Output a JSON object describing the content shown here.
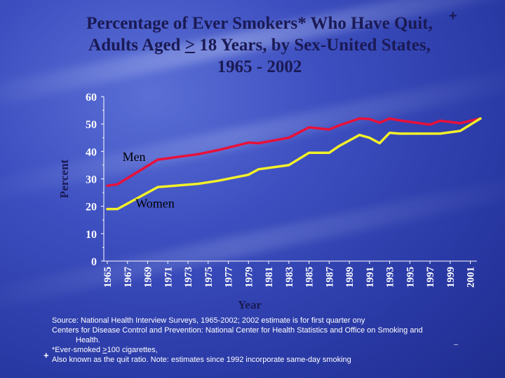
{
  "title": {
    "line1": "Percentage of Ever Smokers* Who Have Quit",
    "line1_end": ",",
    "line2_pre": "Adults Aged ",
    "line2_ge": ">",
    "line2_post": " 18 Years, by Sex-United States,",
    "line3": "1965 - 2002",
    "mark": "+"
  },
  "chart_data": {
    "type": "line",
    "ylabel": "Percent",
    "xlabel": "Year",
    "ylim": [
      0,
      60
    ],
    "yticks": [
      "0",
      "10",
      "20",
      "30",
      "40",
      "50",
      "60"
    ],
    "xlim": [
      1965,
      2002
    ],
    "xticks": [
      "1965",
      "1967",
      "1969",
      "1971",
      "1973",
      "1975",
      "1977",
      "1979",
      "1981",
      "1983",
      "1985",
      "1987",
      "1989",
      "1991",
      "1993",
      "1995",
      "1997",
      "1999",
      "2001"
    ],
    "series": [
      {
        "name": "Men",
        "color": "#e8103a",
        "x": [
          1965,
          1966,
          1970,
          1974,
          1976,
          1979,
          1980,
          1983,
          1985,
          1987,
          1988,
          1990,
          1991,
          1992,
          1993,
          1994,
          1997,
          1998,
          2000,
          2002
        ],
        "y": [
          27.5,
          28,
          37,
          39,
          40.5,
          43.2,
          43,
          45,
          48.8,
          48,
          49.5,
          52,
          51.8,
          50.5,
          52,
          51.3,
          49.8,
          51.2,
          50.3,
          52
        ]
      },
      {
        "name": "Women",
        "color": "#f3f02a",
        "x": [
          1965,
          1966,
          1970,
          1974,
          1976,
          1979,
          1980,
          1983,
          1985,
          1987,
          1988,
          1990,
          1991,
          1992,
          1993,
          1994,
          1997,
          1998,
          2000,
          2002
        ],
        "y": [
          19,
          19,
          27,
          28.2,
          29.3,
          31.5,
          33.5,
          35,
          39.5,
          39.5,
          42,
          46,
          45,
          43,
          46.8,
          46.5,
          46.5,
          46.5,
          47.5,
          52
        ]
      }
    ],
    "series_labels": [
      {
        "text": "Men",
        "x": 1966.5,
        "y": 36.5
      },
      {
        "text": "Women",
        "x": 1967.8,
        "y": 19.5
      }
    ]
  },
  "source": {
    "line1": "Source: National Health Interview Surveys, 1965-2002; 2002 estimate is for first quarter ony",
    "line2": "Centers for Disease Control and Prevention:  National Center for Health Statistics and Office on Smoking and",
    "line3": "Health.",
    "line4_pre": "*Ever-smoked ",
    "line4_ge": ">",
    "line4_post": "100 cigarettes,",
    "line5": "Also known as the quit ratio.  Note: estimates since 1992 incorporate same-day smoking",
    "mark": "+",
    "dash": "_"
  }
}
